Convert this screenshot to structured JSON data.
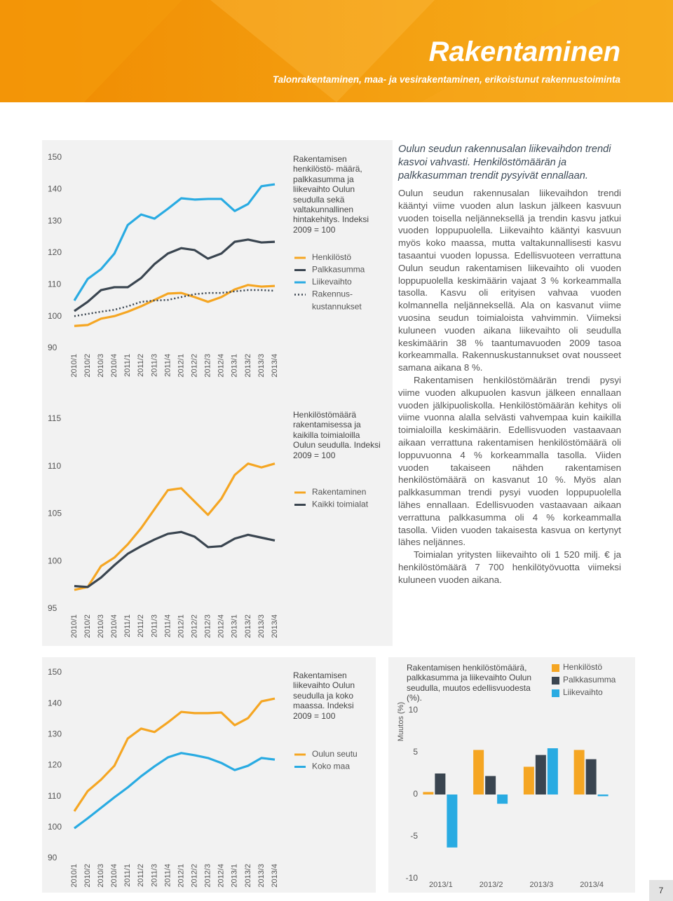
{
  "header": {
    "title": "Rakentaminen",
    "subtitle": "Talonrakentaminen, maa- ja vesirakentaminen, erikoistunut rakennustoiminta"
  },
  "chart_data": [
    {
      "type": "line",
      "title": "Rakentamisen henkilöstö- määrä, palkkasumma ja liikevaihto Oulun seudulla sekä valtakunnallinen hintakehitys. Indeksi 2009 = 100",
      "categories": [
        "2010/1",
        "2010/2",
        "2010/3",
        "2010/4",
        "2011/1",
        "2011/2",
        "2011/3",
        "2011/4",
        "2012/1",
        "2012/2",
        "2012/3",
        "2012/4",
        "2013/1",
        "2013/2",
        "2013/3",
        "2013/4"
      ],
      "ylim": [
        90,
        150
      ],
      "yticks": [
        90,
        100,
        110,
        120,
        130,
        140,
        150
      ],
      "series": [
        {
          "name": "Henkilöstö",
          "color": "#f5a623",
          "values": [
            97,
            97.3,
            99.3,
            100.1,
            101.5,
            103.2,
            105.2,
            107.2,
            107.4,
            106.1,
            104.6,
            106.1,
            108.5,
            109.9,
            109.4,
            109.6
          ]
        },
        {
          "name": "Palkkasumma",
          "color": "#3a4550",
          "values": [
            101.7,
            104.6,
            108.3,
            109.2,
            109.2,
            112.1,
            116.5,
            119.8,
            121.5,
            120.9,
            118.2,
            119.8,
            123.5,
            124.2,
            123.3,
            123.5
          ]
        },
        {
          "name": "Liikevaihto",
          "color": "#29abe2",
          "values": [
            105,
            111.8,
            114.9,
            119.8,
            128.8,
            132.1,
            130.8,
            133.9,
            137.2,
            136.8,
            137,
            137,
            133.2,
            135.4,
            141,
            141.6
          ]
        },
        {
          "name": "Rakennus-\nkustannukset",
          "color": "#3a4550",
          "dotted": true,
          "values": [
            100.1,
            100.8,
            101.5,
            102.1,
            103.2,
            104.6,
            105,
            105.2,
            106.1,
            107,
            107.4,
            107.4,
            107.9,
            108.3,
            108.3,
            108.1
          ]
        }
      ]
    },
    {
      "type": "line",
      "title": "Henkilöstömäärä rakentamisessa ja kaikilla toimialoilla Oulun seudulla. Indeksi 2009 = 100",
      "categories": [
        "2010/1",
        "2010/2",
        "2010/3",
        "2010/4",
        "2011/1",
        "2011/2",
        "2011/3",
        "2011/4",
        "2012/1",
        "2012/2",
        "2012/3",
        "2012/4",
        "2013/1",
        "2013/2",
        "2013/3",
        "2013/4"
      ],
      "ylim": [
        95,
        115
      ],
      "yticks": [
        95,
        100,
        105,
        110,
        115
      ],
      "series": [
        {
          "name": "Rakentaminen",
          "color": "#f5a623",
          "values": [
            97,
            97.3,
            99.5,
            100.4,
            101.8,
            103.5,
            105.5,
            107.5,
            107.7,
            106.3,
            104.9,
            106.6,
            109.1,
            110.3,
            109.9,
            110.3
          ]
        },
        {
          "name": "Kaikki toimialat",
          "color": "#3a4550",
          "values": [
            97.4,
            97.3,
            98.3,
            99.6,
            100.8,
            101.6,
            102.3,
            102.9,
            103.1,
            102.6,
            101.5,
            101.6,
            102.4,
            102.8,
            102.5,
            102.2
          ]
        }
      ]
    },
    {
      "type": "line",
      "title": "Rakentamisen liikevaihto Oulun seudulla ja koko maassa. Indeksi 2009 = 100",
      "categories": [
        "2010/1",
        "2010/2",
        "2010/3",
        "2010/4",
        "2011/1",
        "2011/2",
        "2011/3",
        "2011/4",
        "2012/1",
        "2012/2",
        "2012/3",
        "2012/4",
        "2013/1",
        "2013/2",
        "2013/3",
        "2013/4"
      ],
      "ylim": [
        90,
        150
      ],
      "yticks": [
        90,
        100,
        110,
        120,
        130,
        140,
        150
      ],
      "series": [
        {
          "name": "Oulun seutu",
          "color": "#f5a623",
          "values": [
            105.2,
            111.7,
            115.4,
            119.9,
            128.7,
            131.9,
            130.8,
            133.9,
            137.3,
            136.9,
            136.9,
            137.1,
            133,
            135.3,
            140.7,
            141.6
          ]
        },
        {
          "name": "Koko maa",
          "color": "#29abe2",
          "values": [
            99.7,
            102.9,
            106.3,
            109.7,
            112.9,
            116.5,
            119.7,
            122.6,
            124,
            123.3,
            122.4,
            120.8,
            118.5,
            119.9,
            122.4,
            121.9
          ]
        }
      ]
    },
    {
      "type": "bar",
      "title": "Rakentamisen henkilöstömäärä, palkkasumma ja liikevaihto Oulun seudulla, muutos edellisvuodesta (%).",
      "ylabel": "Muutos (%)",
      "categories": [
        "2013/1",
        "2013/2",
        "2013/3",
        "2013/4"
      ],
      "ylim": [
        -10,
        10
      ],
      "yticks": [
        -10,
        -5,
        0,
        5,
        10
      ],
      "series": [
        {
          "name": "Henkilöstö",
          "color": "#f5a623",
          "values": [
            0.3,
            5.3,
            3.3,
            5.3
          ]
        },
        {
          "name": "Palkkasumma",
          "color": "#3a4550",
          "values": [
            2.5,
            2.2,
            4.7,
            4.2
          ]
        },
        {
          "name": "Liikevaihto",
          "color": "#29abe2",
          "values": [
            -6.3,
            -1.1,
            5.5,
            -0.2
          ]
        }
      ]
    }
  ],
  "article": {
    "lead": "Oulun seudun rakennusalan liikevaihdon trendi kasvoi vahvasti. Henkilöstömäärän ja palkkasumman trendit pysyivät ennallaan.",
    "paragraphs": [
      "Oulun seudun rakennusalan liikevaihdon trendi kääntyi viime vuoden alun laskun jälkeen kasvuun vuoden toisella neljänneksellä ja trendin kasvu jatkui vuoden loppupuolella. Liikevaihto kääntyi kasvuun myös koko maassa, mutta valtakunnallisesti kasvu tasaantui vuoden lopussa. Edellisvuoteen verrattuna Oulun seudun rakentamisen liikevaihto oli vuoden loppupuolella keskimäärin vajaat 3 % korkeammalla tasolla. Kasvu oli erityisen vahvaa vuoden kolmannella neljänneksellä. Ala on kasvanut viime vuosina seudun toimialoista vahvimmin. Viimeksi kuluneen vuoden aikana liikevaihto oli seudulla keskimäärin 38 % taantumavuoden 2009 tasoa korkeammalla. Rakennuskustannukset ovat nousseet samana aikana 8 %.",
      "Rakentamisen henkilöstömäärän trendi pysyi viime vuoden alkupuolen kasvun jälkeen ennallaan vuoden jälkipuoliskolla. Henkilöstömäärän kehitys oli viime vuonna alalla selvästi vahvempaa kuin kaikilla toimialoilla keskimäärin. Edellisvuoden vastaavaan aikaan verrattuna rakentamisen henkilöstömäärä oli loppuvuonna 4 % korkeammalla tasolla. Viiden vuoden takaiseen nähden rakentamisen henkilöstömäärä on kasvanut 10 %. Myös alan palkkasumman trendi pysyi vuoden loppupuolella lähes ennallaan. Edellisvuoden vastaavaan aikaan verrattuna palkkasumma oli 4 % korkeammalla tasolla. Viiden vuoden takaisesta kasvua on kertynyt lähes neljännes.",
      "Toimialan yritysten liikevaihto oli 1 520 milj. € ja henkilöstömäärä 7 700 henkilötyövuotta viimeksi kuluneen vuoden aikana."
    ]
  },
  "page_number": "7"
}
